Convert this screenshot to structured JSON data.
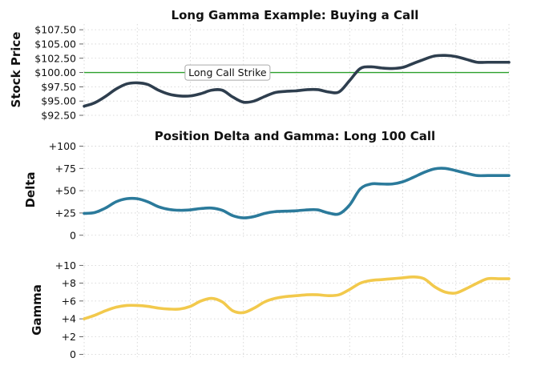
{
  "chart_data": [
    {
      "type": "line",
      "title": "Long Gamma Example: Buying a Call",
      "ylabel": "Stock Price",
      "xlabel": "",
      "ylim": [
        92.5,
        108.5
      ],
      "yticks": [
        92.5,
        95.0,
        97.5,
        100.0,
        102.5,
        105.0,
        107.5
      ],
      "ytick_labels": [
        "$92.50",
        "$95.00",
        "$97.50",
        "$100.00",
        "$102.50",
        "$105.00",
        "$107.50"
      ],
      "grid": true,
      "color": "#2e3e4e",
      "x": [
        0,
        0.2,
        0.4,
        0.6,
        0.8,
        1.0,
        1.2,
        1.4,
        1.6,
        1.8,
        2.0,
        2.2,
        2.4,
        2.6,
        2.8,
        3.0,
        3.2,
        3.4,
        3.6,
        3.8,
        4.0,
        4.2,
        4.4,
        4.6,
        4.8,
        5.0,
        5.2,
        5.4,
        5.6,
        5.8,
        6.0,
        6.2,
        6.4,
        6.6,
        6.8,
        7.0,
        7.2,
        7.4,
        7.6,
        7.8,
        8.0
      ],
      "y": [
        94.1,
        94.7,
        95.8,
        97.1,
        98.0,
        98.2,
        97.9,
        96.9,
        96.2,
        95.9,
        95.9,
        96.3,
        96.9,
        96.9,
        95.7,
        94.8,
        95.0,
        95.8,
        96.5,
        96.7,
        96.8,
        97.0,
        97.0,
        96.6,
        96.6,
        98.6,
        100.7,
        101.0,
        100.8,
        100.7,
        100.9,
        101.6,
        102.3,
        102.9,
        103.0,
        102.8,
        102.3,
        101.8,
        101.8,
        101.8,
        101.8
      ],
      "hline": {
        "y": 100.0,
        "color": "#2ca02c"
      },
      "annotation": {
        "text": "Long Call Strike",
        "x": 2.7,
        "y": 100.0
      }
    },
    {
      "type": "line",
      "title": "Position Delta and Gamma: Long 100 Call",
      "ylabel": "Delta",
      "xlabel": "",
      "ylim": [
        -2,
        104
      ],
      "yticks": [
        0,
        25,
        50,
        75,
        100
      ],
      "ytick_labels": [
        "0",
        "+25",
        "+50",
        "+75",
        "+100"
      ],
      "grid": true,
      "color": "#2b7a9b",
      "x": [
        0,
        0.2,
        0.4,
        0.6,
        0.8,
        1.0,
        1.2,
        1.4,
        1.6,
        1.8,
        2.0,
        2.2,
        2.4,
        2.6,
        2.8,
        3.0,
        3.2,
        3.4,
        3.6,
        3.8,
        4.0,
        4.2,
        4.4,
        4.6,
        4.8,
        5.0,
        5.2,
        5.4,
        5.6,
        5.8,
        6.0,
        6.2,
        6.4,
        6.6,
        6.8,
        7.0,
        7.2,
        7.4,
        7.6,
        7.8,
        8.0
      ],
      "y": [
        24.5,
        25.5,
        30.5,
        37.5,
        41.0,
        41.0,
        37.5,
        32.0,
        29.0,
        28.0,
        28.5,
        30.0,
        30.5,
        28.0,
        22.0,
        19.5,
        21.0,
        24.5,
        26.5,
        27.0,
        27.5,
        28.5,
        28.5,
        25.0,
        24.0,
        34.0,
        52.0,
        57.5,
        57.5,
        57.5,
        60.0,
        65.0,
        70.5,
        74.5,
        75.0,
        72.5,
        69.5,
        67.0,
        67.0,
        67.0,
        67.0
      ]
    },
    {
      "type": "line",
      "title": "",
      "ylabel": "Gamma",
      "xlabel": "",
      "ylim": [
        -0.3,
        10.3
      ],
      "yticks": [
        0,
        2,
        4,
        6,
        8,
        10
      ],
      "ytick_labels": [
        "0",
        "+2",
        "+4",
        "+6",
        "+8",
        "+10"
      ],
      "grid": true,
      "color": "#f2c94c",
      "x": [
        0,
        0.2,
        0.4,
        0.6,
        0.8,
        1.0,
        1.2,
        1.4,
        1.6,
        1.8,
        2.0,
        2.2,
        2.4,
        2.6,
        2.8,
        3.0,
        3.2,
        3.4,
        3.6,
        3.8,
        4.0,
        4.2,
        4.4,
        4.6,
        4.8,
        5.0,
        5.2,
        5.4,
        5.6,
        5.8,
        6.0,
        6.2,
        6.4,
        6.6,
        6.8,
        7.0,
        7.2,
        7.4,
        7.6,
        7.8,
        8.0
      ],
      "y": [
        4.0,
        4.4,
        4.9,
        5.3,
        5.5,
        5.5,
        5.4,
        5.2,
        5.1,
        5.1,
        5.4,
        6.0,
        6.3,
        5.9,
        4.9,
        4.7,
        5.2,
        5.9,
        6.3,
        6.5,
        6.6,
        6.7,
        6.7,
        6.6,
        6.7,
        7.3,
        8.0,
        8.3,
        8.4,
        8.5,
        8.6,
        8.7,
        8.5,
        7.6,
        7.0,
        6.9,
        7.4,
        8.0,
        8.5,
        8.5,
        8.5
      ]
    }
  ]
}
